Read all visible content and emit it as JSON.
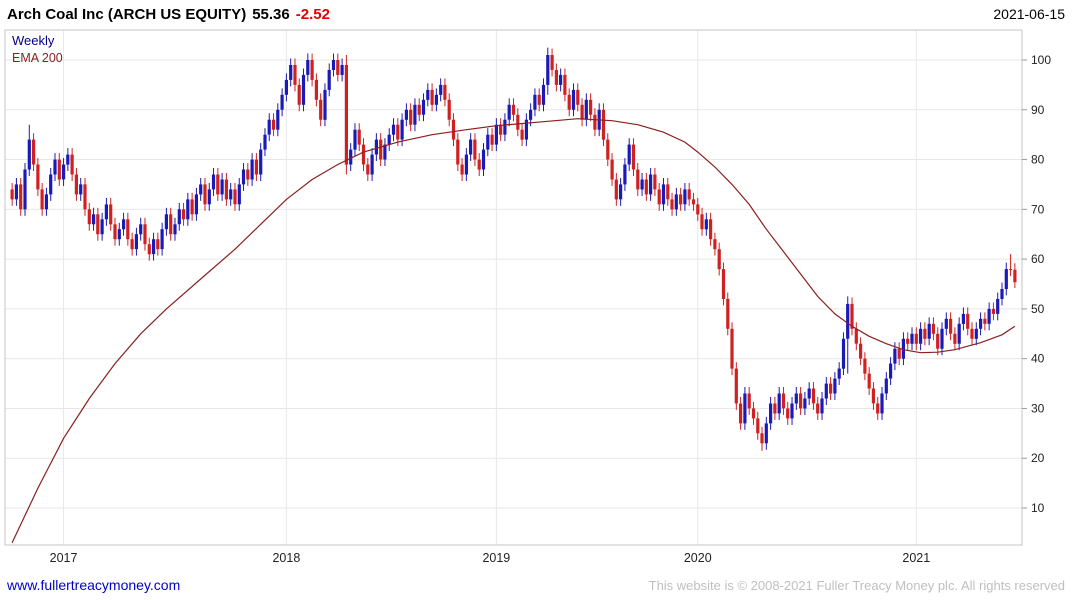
{
  "header": {
    "title": "Arch Coal Inc (ARCH US EQUITY)",
    "price": "55.36",
    "change": "-2.52",
    "date": "2021-06-15"
  },
  "legend": {
    "timeframe": "Weekly",
    "overlay": "EMA 200"
  },
  "footer": {
    "link": "www.fullertreacymoney.com",
    "copyright": "This website is © 2008-2021 Fuller Treacy Money plc. All rights reserved"
  },
  "colors": {
    "up_candle": "#1a1ab8",
    "down_candle": "#d02020",
    "ema": "#8b1f1f",
    "grid": "#e7e7e7",
    "frame": "#c4c4c4",
    "axis_text": "#222222",
    "tick": "#999999",
    "title_text": "#000000",
    "change_negative": "#e60000",
    "legend_weekly": "#00008b",
    "legend_ema": "#8b1f1f",
    "link": "#0000cc",
    "copyright_text": "#bfbfbf"
  },
  "chart_data": {
    "type": "candlestick",
    "timeframe": "weekly",
    "instrument": "Arch Coal Inc (ARCH US EQUITY)",
    "last_close": 55.36,
    "change": -2.52,
    "as_of": "2021-06-15",
    "ylim": [
      2,
      106
    ],
    "yticks": [
      10,
      20,
      30,
      40,
      50,
      60,
      70,
      80,
      90,
      100
    ],
    "xticks": [
      {
        "label": "2017",
        "week": 12
      },
      {
        "label": "2018",
        "week": 64
      },
      {
        "label": "2019",
        "week": 113
      },
      {
        "label": "2020",
        "week": 160
      },
      {
        "label": "2021",
        "week": 211
      }
    ],
    "grid": true,
    "legend_position": "top-left",
    "open_first": 74,
    "default_wick": 1.3,
    "closes": [
      72,
      75,
      70,
      78,
      84,
      79,
      74,
      70,
      73,
      77,
      80,
      76,
      79,
      81,
      77,
      73,
      75,
      70,
      67,
      69,
      65,
      68,
      71,
      67,
      64,
      66,
      68,
      64,
      62,
      65,
      67,
      63,
      61,
      64,
      62,
      66,
      69,
      65,
      67,
      70,
      68,
      72,
      69,
      73,
      75,
      71,
      74,
      77,
      73,
      76,
      72,
      74,
      71,
      75,
      78,
      76,
      80,
      77,
      82,
      85,
      88,
      86,
      90,
      93,
      96,
      99,
      95,
      91,
      97,
      100,
      96,
      92,
      88,
      94,
      98,
      100,
      97,
      99,
      79,
      82,
      86,
      83,
      79,
      77,
      81,
      84,
      80,
      83,
      85,
      87,
      84,
      88,
      90,
      87,
      91,
      89,
      92,
      94,
      91,
      93,
      95,
      92,
      88,
      84,
      79,
      77,
      81,
      84,
      80,
      78,
      82,
      85,
      83,
      87,
      85,
      88,
      91,
      89,
      86,
      84,
      88,
      90,
      93,
      91,
      95,
      101,
      98,
      95,
      97,
      93,
      90,
      94,
      91,
      88,
      92,
      89,
      86,
      90,
      84,
      80,
      76,
      72,
      75,
      79,
      83,
      78,
      74,
      76,
      73,
      77,
      74,
      71,
      75,
      72,
      70,
      73,
      71,
      74,
      72,
      71,
      69,
      66,
      68,
      64,
      62,
      58,
      52,
      46,
      38,
      31,
      27,
      33,
      30,
      28,
      25,
      23,
      27,
      31,
      29,
      33,
      30,
      28,
      31,
      33,
      30,
      32,
      34,
      31,
      29,
      32,
      35,
      33,
      36,
      38,
      44,
      51,
      46,
      43,
      40,
      37,
      34,
      31,
      29,
      33,
      36,
      39,
      42,
      40,
      44,
      43,
      45,
      43,
      46,
      44,
      47,
      45,
      42,
      46,
      48,
      45,
      43,
      47,
      49,
      46,
      44,
      46,
      48,
      47,
      50,
      49,
      52,
      54,
      58,
      57.88,
      55.36
    ],
    "special_candles": {
      "4": {
        "h": 87
      },
      "78": {
        "h": 101,
        "l": 77
      },
      "125": {
        "h": 102.5,
        "l": 93
      },
      "175": {
        "l": 21.5
      },
      "195": {
        "h": 52.5,
        "l": 37
      },
      "233": {
        "h": 61
      },
      "234": {
        "l": 54.2
      }
    },
    "ema200": [
      [
        0,
        3
      ],
      [
        6,
        14
      ],
      [
        12,
        24
      ],
      [
        18,
        32
      ],
      [
        24,
        39
      ],
      [
        30,
        45
      ],
      [
        36,
        50
      ],
      [
        44,
        56
      ],
      [
        52,
        62
      ],
      [
        58,
        67
      ],
      [
        64,
        72
      ],
      [
        70,
        76
      ],
      [
        76,
        79
      ],
      [
        82,
        81.5
      ],
      [
        90,
        83.5
      ],
      [
        98,
        85
      ],
      [
        106,
        86
      ],
      [
        113,
        86.8
      ],
      [
        124,
        87.6
      ],
      [
        132,
        88.2
      ],
      [
        140,
        87.8
      ],
      [
        146,
        87
      ],
      [
        152,
        85.5
      ],
      [
        157,
        83.5
      ],
      [
        160,
        81.5
      ],
      [
        164,
        78.5
      ],
      [
        168,
        75
      ],
      [
        172,
        71
      ],
      [
        176,
        66
      ],
      [
        180,
        61.5
      ],
      [
        184,
        57
      ],
      [
        188,
        52.5
      ],
      [
        192,
        49
      ],
      [
        196,
        46.5
      ],
      [
        200,
        44.5
      ],
      [
        204,
        43
      ],
      [
        208,
        41.8
      ],
      [
        212,
        41.2
      ],
      [
        216,
        41.3
      ],
      [
        220,
        41.8
      ],
      [
        226,
        43.2
      ],
      [
        231,
        44.8
      ],
      [
        234,
        46.5
      ]
    ]
  }
}
